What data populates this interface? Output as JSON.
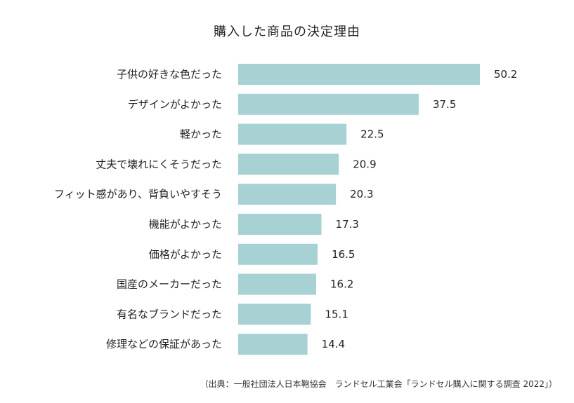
{
  "chart_data": {
    "type": "bar",
    "orientation": "horizontal",
    "title": "購入した商品の決定理由",
    "categories": [
      "子供の好きな色だった",
      "デザインがよかった",
      "軽かった",
      "丈夫で壊れにくそうだった",
      "フィット感があり、背負いやすそう",
      "機能がよかった",
      "価格がよかった",
      "国産のメーカーだった",
      "有名なブランドだった",
      "修理などの保証があった"
    ],
    "values": [
      50.2,
      37.5,
      22.5,
      20.9,
      20.3,
      17.3,
      16.5,
      16.2,
      15.1,
      14.4
    ],
    "value_labels": [
      "50.2",
      "37.5",
      "22.5",
      "20.9",
      "20.3",
      "17.3",
      "16.5",
      "16.2",
      "15.1",
      "14.4"
    ],
    "xlim": [
      0,
      60
    ],
    "grid": false,
    "legend": "none",
    "bar_color": "#a8d1d3",
    "source": "（出典：一般社団法人日本鞄協会　ランドセル工業会「ランドセル購入に関する調査 2022」）"
  }
}
